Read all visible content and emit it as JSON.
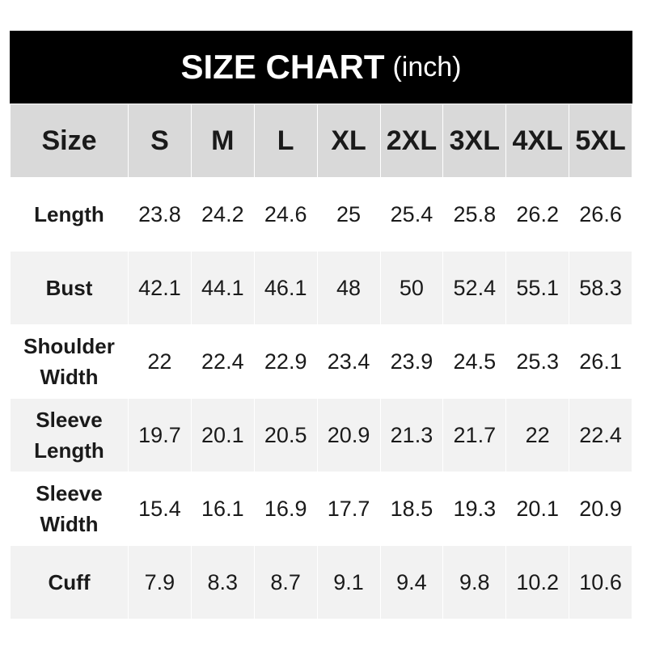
{
  "title": {
    "main": "SIZE CHART",
    "unit": "(inch)"
  },
  "header": [
    "Size",
    "S",
    "M",
    "L",
    "XL",
    "2XL",
    "3XL",
    "4XL",
    "5XL"
  ],
  "rows": [
    {
      "label": "Length",
      "values": [
        "23.8",
        "24.2",
        "24.6",
        "25",
        "25.4",
        "25.8",
        "26.2",
        "26.6"
      ]
    },
    {
      "label": "Bust",
      "values": [
        "42.1",
        "44.1",
        "46.1",
        "48",
        "50",
        "52.4",
        "55.1",
        "58.3"
      ]
    },
    {
      "label": "Shoulder Width",
      "values": [
        "22",
        "22.4",
        "22.9",
        "23.4",
        "23.9",
        "24.5",
        "25.3",
        "26.1"
      ]
    },
    {
      "label": "Sleeve Length",
      "values": [
        "19.7",
        "20.1",
        "20.5",
        "20.9",
        "21.3",
        "21.7",
        "22",
        "22.4"
      ]
    },
    {
      "label": "Sleeve Width",
      "values": [
        "15.4",
        "16.1",
        "16.9",
        "17.7",
        "18.5",
        "19.3",
        "20.1",
        "20.9"
      ]
    },
    {
      "label": "Cuff",
      "values": [
        "7.9",
        "8.3",
        "8.7",
        "9.1",
        "9.4",
        "9.8",
        "10.2",
        "10.6"
      ]
    }
  ],
  "colors": {
    "title_bg": "#000000",
    "header_bg": "#d9d9d9",
    "alt_row_bg": "#f2f2f2"
  }
}
